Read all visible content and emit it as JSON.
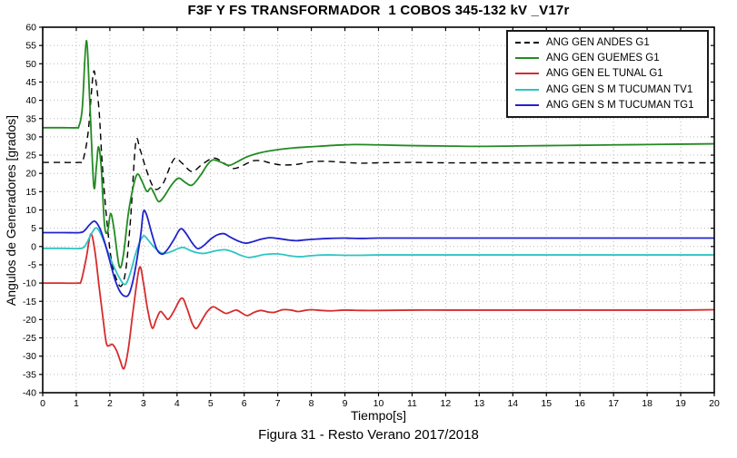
{
  "figure": {
    "caption": "Figura 31 - Resto Verano 2017/2018"
  },
  "chart_data": {
    "type": "line",
    "title": "F3F Y FS TRANSFORMADOR  1 COBOS 345-132 kV _V17r",
    "xlabel": "Tiempo[s]",
    "ylabel": "Angulos de Generadores [grados]",
    "xlim": [
      0,
      20
    ],
    "ylim": [
      -40,
      60
    ],
    "xticks": [
      0,
      1,
      2,
      3,
      4,
      5,
      6,
      7,
      8,
      9,
      10,
      11,
      12,
      13,
      14,
      15,
      16,
      17,
      18,
      19,
      20
    ],
    "yticks": [
      -40,
      -35,
      -30,
      -25,
      -20,
      -15,
      -10,
      -5,
      0,
      5,
      10,
      15,
      20,
      25,
      30,
      35,
      40,
      45,
      50,
      55,
      60
    ],
    "grid": true,
    "grid_color": "#b9b9b9",
    "axis_color": "#000000",
    "legend_position": "top-right",
    "series": [
      {
        "name": "ANG GEN ANDES G1",
        "color": "#000000",
        "dash": "7,5",
        "width": 1.4,
        "points": [
          [
            0,
            23
          ],
          [
            0.6,
            23
          ],
          [
            1.1,
            23
          ],
          [
            1.2,
            23.6
          ],
          [
            1.35,
            31
          ],
          [
            1.5,
            47
          ],
          [
            1.58,
            45.5
          ],
          [
            1.68,
            37
          ],
          [
            1.77,
            23
          ],
          [
            1.9,
            8
          ],
          [
            2.05,
            -4
          ],
          [
            2.22,
            -9.5
          ],
          [
            2.35,
            -10.7
          ],
          [
            2.48,
            -6
          ],
          [
            2.62,
            8
          ],
          [
            2.77,
            28.4
          ],
          [
            2.9,
            26.5
          ],
          [
            3.05,
            22
          ],
          [
            3.25,
            17
          ],
          [
            3.4,
            15.6
          ],
          [
            3.6,
            17.5
          ],
          [
            3.8,
            22
          ],
          [
            3.95,
            24.2
          ],
          [
            4.15,
            22.8
          ],
          [
            4.45,
            20.5
          ],
          [
            4.75,
            22.5
          ],
          [
            5.1,
            24.2
          ],
          [
            5.4,
            22.8
          ],
          [
            5.65,
            21.4
          ],
          [
            5.85,
            21.7
          ],
          [
            6.1,
            22.8
          ],
          [
            6.3,
            23.5
          ],
          [
            6.55,
            23.4
          ],
          [
            6.8,
            22.8
          ],
          [
            7.15,
            22.3
          ],
          [
            7.6,
            22.5
          ],
          [
            8,
            23.2
          ],
          [
            8.5,
            23.3
          ],
          [
            9,
            23
          ],
          [
            9.5,
            22.8
          ],
          [
            10,
            22.9
          ],
          [
            11,
            23
          ],
          [
            12,
            22.9
          ],
          [
            13,
            22.9
          ],
          [
            14,
            22.9
          ],
          [
            15,
            22.9
          ],
          [
            16,
            22.9
          ],
          [
            17,
            22.9
          ],
          [
            18,
            22.9
          ],
          [
            19,
            22.9
          ],
          [
            20,
            22.9
          ]
        ]
      },
      {
        "name": "ANG GEN GUEMES G1",
        "color": "#228b22",
        "dash": null,
        "width": 1.8,
        "points": [
          [
            0,
            32.5
          ],
          [
            0.6,
            32.5
          ],
          [
            1.0,
            32.5
          ],
          [
            1.08,
            33
          ],
          [
            1.18,
            38
          ],
          [
            1.3,
            56.3
          ],
          [
            1.4,
            40
          ],
          [
            1.52,
            16.6
          ],
          [
            1.6,
            22
          ],
          [
            1.66,
            27.3
          ],
          [
            1.74,
            22
          ],
          [
            1.84,
            6
          ],
          [
            1.93,
            4
          ],
          [
            2.02,
            9
          ],
          [
            2.12,
            5
          ],
          [
            2.28,
            -5.4
          ],
          [
            2.4,
            -2.5
          ],
          [
            2.55,
            9
          ],
          [
            2.7,
            16.5
          ],
          [
            2.82,
            19.8
          ],
          [
            2.95,
            18
          ],
          [
            3.1,
            15.1
          ],
          [
            3.22,
            16
          ],
          [
            3.32,
            14.5
          ],
          [
            3.45,
            12.3
          ],
          [
            3.6,
            13.5
          ],
          [
            3.85,
            17
          ],
          [
            4.05,
            18.7
          ],
          [
            4.25,
            17.5
          ],
          [
            4.45,
            16.8
          ],
          [
            4.7,
            19.5
          ],
          [
            4.9,
            22.3
          ],
          [
            5.07,
            23.7
          ],
          [
            5.3,
            23.1
          ],
          [
            5.55,
            22.2
          ],
          [
            5.8,
            23.2
          ],
          [
            6.1,
            24.6
          ],
          [
            6.5,
            25.7
          ],
          [
            7,
            26.5
          ],
          [
            7.5,
            27
          ],
          [
            8,
            27.3
          ],
          [
            8.7,
            27.7
          ],
          [
            9.3,
            27.9
          ],
          [
            10,
            27.8
          ],
          [
            11,
            27.6
          ],
          [
            12,
            27.5
          ],
          [
            13,
            27.4
          ],
          [
            14,
            27.5
          ],
          [
            15,
            27.6
          ],
          [
            16,
            27.7
          ],
          [
            17,
            27.8
          ],
          [
            18,
            27.9
          ],
          [
            19,
            28
          ],
          [
            20,
            28.1
          ]
        ]
      },
      {
        "name": "ANG GEN EL TUNAL G1",
        "color": "#d62c2c",
        "dash": null,
        "width": 1.8,
        "points": [
          [
            0,
            -10
          ],
          [
            0.6,
            -10
          ],
          [
            1.05,
            -10
          ],
          [
            1.15,
            -9.3
          ],
          [
            1.3,
            -3
          ],
          [
            1.43,
            3.4
          ],
          [
            1.55,
            -1
          ],
          [
            1.68,
            -11
          ],
          [
            1.8,
            -20
          ],
          [
            1.9,
            -26.6
          ],
          [
            2.0,
            -27
          ],
          [
            2.08,
            -26.8
          ],
          [
            2.2,
            -28.5
          ],
          [
            2.3,
            -31
          ],
          [
            2.42,
            -33.4
          ],
          [
            2.55,
            -28
          ],
          [
            2.7,
            -17
          ],
          [
            2.88,
            -5.8
          ],
          [
            3.0,
            -10
          ],
          [
            3.12,
            -17
          ],
          [
            3.26,
            -22.3
          ],
          [
            3.38,
            -20
          ],
          [
            3.5,
            -17.8
          ],
          [
            3.62,
            -18.8
          ],
          [
            3.74,
            -19.9
          ],
          [
            3.9,
            -17.8
          ],
          [
            4.14,
            -14.1
          ],
          [
            4.3,
            -17
          ],
          [
            4.45,
            -21
          ],
          [
            4.58,
            -22.4
          ],
          [
            4.75,
            -20
          ],
          [
            4.9,
            -17.8
          ],
          [
            5.07,
            -16.5
          ],
          [
            5.25,
            -17.3
          ],
          [
            5.45,
            -18.3
          ],
          [
            5.6,
            -17.9
          ],
          [
            5.77,
            -17.4
          ],
          [
            5.95,
            -18.3
          ],
          [
            6.1,
            -18.9
          ],
          [
            6.3,
            -18
          ],
          [
            6.5,
            -17.5
          ],
          [
            6.7,
            -17.9
          ],
          [
            6.9,
            -18
          ],
          [
            7.15,
            -17.3
          ],
          [
            7.4,
            -17.4
          ],
          [
            7.6,
            -17.8
          ],
          [
            7.8,
            -17.5
          ],
          [
            8,
            -17.3
          ],
          [
            8.3,
            -17.5
          ],
          [
            8.6,
            -17.6
          ],
          [
            9,
            -17.4
          ],
          [
            9.5,
            -17.5
          ],
          [
            10,
            -17.5
          ],
          [
            11,
            -17.4
          ],
          [
            12,
            -17.4
          ],
          [
            13,
            -17.4
          ],
          [
            14,
            -17.4
          ],
          [
            15,
            -17.4
          ],
          [
            16,
            -17.4
          ],
          [
            17,
            -17.4
          ],
          [
            18,
            -17.4
          ],
          [
            19,
            -17.4
          ],
          [
            20,
            -17.3
          ]
        ]
      },
      {
        "name": "ANG GEN S M TUCUMAN TV1",
        "color": "#2ec4c4",
        "dash": null,
        "width": 1.8,
        "points": [
          [
            0,
            -0.5
          ],
          [
            0.6,
            -0.5
          ],
          [
            1.15,
            -0.5
          ],
          [
            1.3,
            0.8
          ],
          [
            1.45,
            3.5
          ],
          [
            1.6,
            5.1
          ],
          [
            1.75,
            3
          ],
          [
            1.9,
            -0.5
          ],
          [
            2.05,
            -4
          ],
          [
            2.25,
            -8
          ],
          [
            2.45,
            -10.4
          ],
          [
            2.6,
            -7.5
          ],
          [
            2.75,
            -2.5
          ],
          [
            2.88,
            1
          ],
          [
            3.0,
            2.9
          ],
          [
            3.12,
            2
          ],
          [
            3.3,
            0
          ],
          [
            3.5,
            -1.6
          ],
          [
            3.65,
            -1.9
          ],
          [
            3.85,
            -1.3
          ],
          [
            4.05,
            -0.5
          ],
          [
            4.2,
            -0.3
          ],
          [
            4.4,
            -1.1
          ],
          [
            4.6,
            -1.7
          ],
          [
            4.8,
            -1.9
          ],
          [
            5.0,
            -1.5
          ],
          [
            5.2,
            -1.1
          ],
          [
            5.45,
            -0.9
          ],
          [
            5.7,
            -1.6
          ],
          [
            5.9,
            -2.4
          ],
          [
            6.13,
            -3
          ],
          [
            6.35,
            -2.7
          ],
          [
            6.6,
            -2.2
          ],
          [
            6.9,
            -2
          ],
          [
            7.15,
            -2.2
          ],
          [
            7.4,
            -2.6
          ],
          [
            7.66,
            -2.8
          ],
          [
            7.9,
            -2.6
          ],
          [
            8.15,
            -2.4
          ],
          [
            8.5,
            -2.3
          ],
          [
            9,
            -2.4
          ],
          [
            9.5,
            -2.4
          ],
          [
            10,
            -2.3
          ],
          [
            11,
            -2.3
          ],
          [
            12,
            -2.3
          ],
          [
            13,
            -2.3
          ],
          [
            14,
            -2.3
          ],
          [
            15,
            -2.3
          ],
          [
            16,
            -2.3
          ],
          [
            17,
            -2.3
          ],
          [
            18,
            -2.3
          ],
          [
            19,
            -2.3
          ],
          [
            20,
            -2.3
          ]
        ]
      },
      {
        "name": "ANG GEN S M TUCUMAN TG1",
        "color": "#2222cc",
        "dash": null,
        "width": 1.8,
        "points": [
          [
            0,
            3.8
          ],
          [
            0.6,
            3.8
          ],
          [
            1.1,
            3.8
          ],
          [
            1.25,
            4.4
          ],
          [
            1.4,
            6
          ],
          [
            1.55,
            6.9
          ],
          [
            1.7,
            5
          ],
          [
            1.85,
            1
          ],
          [
            2.0,
            -4
          ],
          [
            2.15,
            -9
          ],
          [
            2.3,
            -12.3
          ],
          [
            2.45,
            -13.6
          ],
          [
            2.58,
            -12.8
          ],
          [
            2.72,
            -8
          ],
          [
            2.85,
            -1
          ],
          [
            2.93,
            4
          ],
          [
            3.0,
            9.6
          ],
          [
            3.1,
            8.5
          ],
          [
            3.25,
            3.5
          ],
          [
            3.4,
            -0.8
          ],
          [
            3.55,
            -2.1
          ],
          [
            3.7,
            -1
          ],
          [
            3.9,
            1.8
          ],
          [
            4.1,
            4.8
          ],
          [
            4.25,
            3.8
          ],
          [
            4.45,
            1
          ],
          [
            4.62,
            -0.6
          ],
          [
            4.8,
            0.3
          ],
          [
            5.0,
            2
          ],
          [
            5.2,
            3.2
          ],
          [
            5.4,
            3.5
          ],
          [
            5.6,
            2.5
          ],
          [
            5.85,
            1.4
          ],
          [
            6.05,
            0.9
          ],
          [
            6.25,
            1.3
          ],
          [
            6.5,
            2
          ],
          [
            6.76,
            2.4
          ],
          [
            7.0,
            2.2
          ],
          [
            7.3,
            1.8
          ],
          [
            7.57,
            1.6
          ],
          [
            7.8,
            1.8
          ],
          [
            8.1,
            2
          ],
          [
            8.5,
            2.2
          ],
          [
            9,
            2.3
          ],
          [
            9.5,
            2.2
          ],
          [
            10,
            2.3
          ],
          [
            11,
            2.3
          ],
          [
            12,
            2.3
          ],
          [
            13,
            2.3
          ],
          [
            14,
            2.3
          ],
          [
            15,
            2.3
          ],
          [
            16,
            2.3
          ],
          [
            17,
            2.3
          ],
          [
            18,
            2.3
          ],
          [
            19,
            2.3
          ],
          [
            20,
            2.3
          ]
        ]
      }
    ]
  }
}
